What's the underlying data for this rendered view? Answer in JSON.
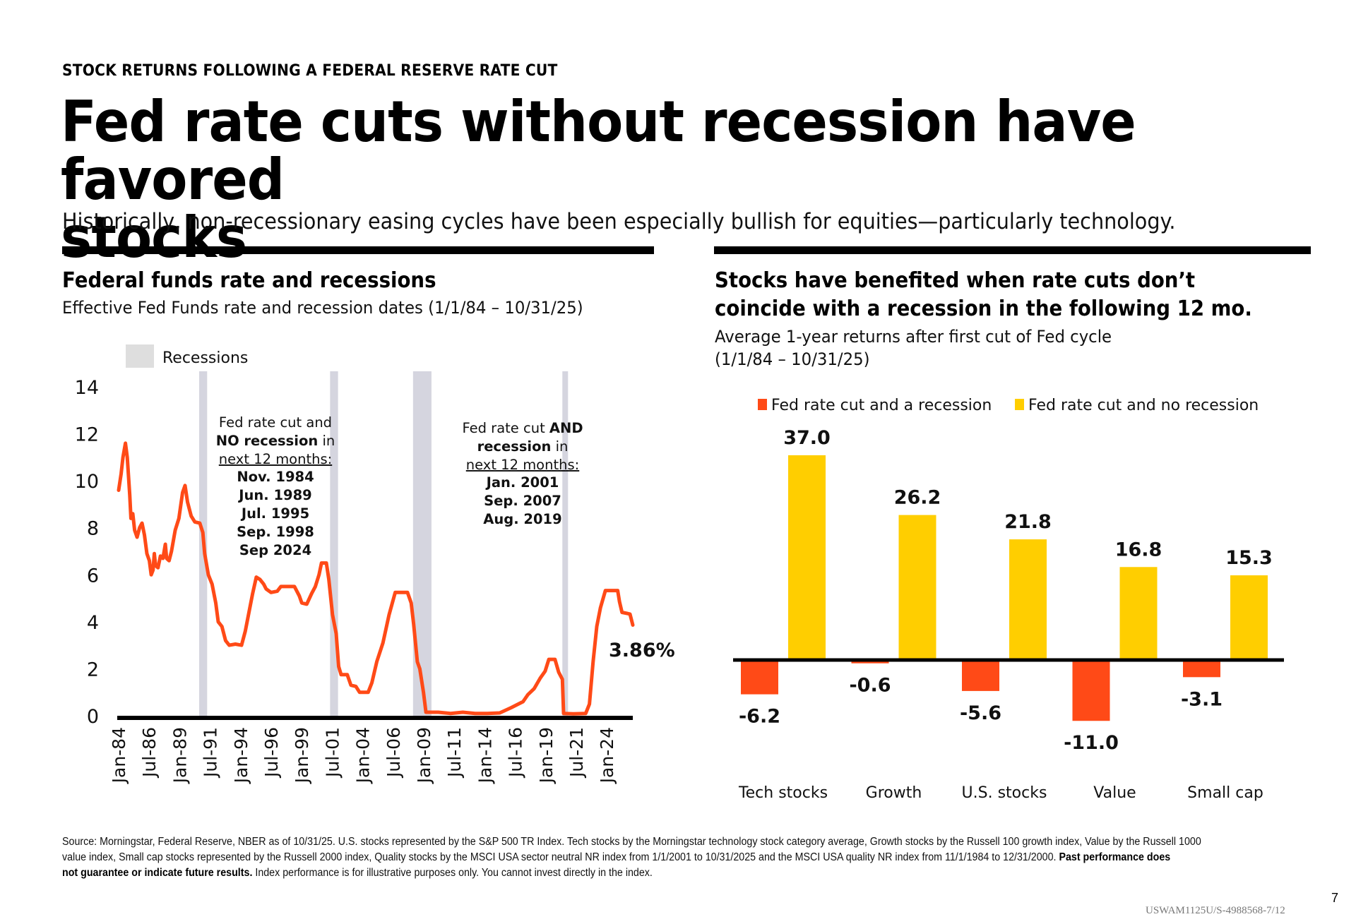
{
  "header": {
    "eyebrow": "STOCK RETURNS FOLLOWING A FEDERAL RESERVE RATE CUT",
    "title_line1": "Fed rate cuts without recession have favored",
    "title_line2": "stocks",
    "subtitle": "Historically, non-recessionary easing cycles have been especially bullish for equities—particularly technology."
  },
  "left_panel": {
    "title": "Federal funds rate and recessions",
    "subtitle": "Effective Fed Funds rate and recession dates (1/1/84 – 10/31/25)",
    "legend_label": "Recessions",
    "annotation_no_recession": {
      "line1": "Fed rate cut and",
      "line2_bold": "NO recession",
      "line2_rest": " in",
      "line3": "next 12 months:",
      "dates": [
        "Nov. 1984",
        "Jun. 1989",
        "Jul. 1995",
        "Sep. 1998",
        "Sep 2024"
      ]
    },
    "annotation_recession": {
      "line1_plain": "Fed rate cut ",
      "line1_bold": "AND",
      "line2_bold": "recession",
      "line2_rest": " in",
      "line3": "next 12 months:",
      "dates": [
        "Jan. 2001",
        "Sep. 2007",
        "Aug. 2019"
      ]
    },
    "end_label": "3.86%"
  },
  "right_panel": {
    "title_line1": "Stocks have benefited when rate cuts don’t",
    "title_line2": "coincide with a recession in the following 12 mo.",
    "subtitle_line1": "Average 1-year returns after first cut of Fed cycle",
    "subtitle_line2": "(1/1/84 – 10/31/25)"
  },
  "colors": {
    "recession_series": "#FF4A17",
    "no_recession_series": "#FFCE00",
    "rate_line": "#FF4A17",
    "recession_band": "#D5D5DF",
    "legend_box": "#DEDEDE"
  },
  "chart_data": [
    {
      "type": "line",
      "title": "Federal funds rate and recessions",
      "xlabel": "",
      "ylabel": "",
      "ylim": [
        0,
        14
      ],
      "yticks": [
        "0",
        "2",
        "4",
        "6",
        "8",
        "10",
        "12",
        "14"
      ],
      "xrange": [
        1984.0,
        2025.83
      ],
      "xtick_labels": [
        "Jan-84",
        "Jul-86",
        "Jan-89",
        "Jul-91",
        "Jan-94",
        "Jul-96",
        "Jan-99",
        "Jul-01",
        "Jan-04",
        "Jul-06",
        "Jan-09",
        "Jul-11",
        "Jan-14",
        "Jul-16",
        "Jan-19",
        "Jul-21",
        "Jan-24"
      ],
      "grid": false,
      "legend": "top-left",
      "recessions": [
        {
          "start": 1990.55,
          "end": 1991.2
        },
        {
          "start": 2001.2,
          "end": 2001.85
        },
        {
          "start": 2007.95,
          "end": 2009.45
        },
        {
          "start": 2020.1,
          "end": 2020.3
        }
      ],
      "series": [
        {
          "name": "Effective Fed Funds rate",
          "points": [
            [
              1984.0,
              9.6
            ],
            [
              1984.2,
              10.3
            ],
            [
              1984.35,
              11.0
            ],
            [
              1984.55,
              11.6
            ],
            [
              1984.7,
              11.0
            ],
            [
              1984.9,
              9.4
            ],
            [
              1985.0,
              8.4
            ],
            [
              1985.15,
              8.6
            ],
            [
              1985.3,
              7.9
            ],
            [
              1985.5,
              7.6
            ],
            [
              1985.7,
              8.0
            ],
            [
              1985.9,
              8.2
            ],
            [
              1986.1,
              7.7
            ],
            [
              1986.3,
              6.9
            ],
            [
              1986.5,
              6.6
            ],
            [
              1986.65,
              6.0
            ],
            [
              1986.8,
              6.2
            ],
            [
              1986.9,
              6.9
            ],
            [
              1987.0,
              6.4
            ],
            [
              1987.2,
              6.3
            ],
            [
              1987.4,
              6.8
            ],
            [
              1987.6,
              6.7
            ],
            [
              1987.8,
              7.3
            ],
            [
              1987.9,
              6.7
            ],
            [
              1988.1,
              6.6
            ],
            [
              1988.3,
              7.0
            ],
            [
              1988.6,
              7.9
            ],
            [
              1988.9,
              8.4
            ],
            [
              1989.2,
              9.5
            ],
            [
              1989.4,
              9.8
            ],
            [
              1989.6,
              9.1
            ],
            [
              1989.9,
              8.5
            ],
            [
              1990.2,
              8.25
            ],
            [
              1990.6,
              8.2
            ],
            [
              1990.85,
              7.8
            ],
            [
              1991.0,
              6.9
            ],
            [
              1991.3,
              6.0
            ],
            [
              1991.6,
              5.6
            ],
            [
              1991.9,
              4.8
            ],
            [
              1992.1,
              4.0
            ],
            [
              1992.4,
              3.8
            ],
            [
              1992.7,
              3.2
            ],
            [
              1993.0,
              3.0
            ],
            [
              1993.5,
              3.05
            ],
            [
              1994.0,
              3.0
            ],
            [
              1994.3,
              3.6
            ],
            [
              1994.6,
              4.4
            ],
            [
              1994.9,
              5.2
            ],
            [
              1995.2,
              5.9
            ],
            [
              1995.5,
              5.8
            ],
            [
              1995.8,
              5.6
            ],
            [
              1996.0,
              5.4
            ],
            [
              1996.4,
              5.25
            ],
            [
              1996.9,
              5.3
            ],
            [
              1997.2,
              5.5
            ],
            [
              1997.8,
              5.5
            ],
            [
              1998.3,
              5.5
            ],
            [
              1998.7,
              5.1
            ],
            [
              1998.9,
              4.8
            ],
            [
              1999.3,
              4.75
            ],
            [
              1999.7,
              5.2
            ],
            [
              2000.0,
              5.5
            ],
            [
              2000.3,
              6.0
            ],
            [
              2000.5,
              6.5
            ],
            [
              2000.9,
              6.5
            ],
            [
              2001.1,
              5.8
            ],
            [
              2001.4,
              4.3
            ],
            [
              2001.7,
              3.5
            ],
            [
              2001.9,
              2.1
            ],
            [
              2002.1,
              1.75
            ],
            [
              2002.6,
              1.75
            ],
            [
              2002.9,
              1.3
            ],
            [
              2003.3,
              1.25
            ],
            [
              2003.6,
              1.0
            ],
            [
              2004.3,
              1.0
            ],
            [
              2004.6,
              1.4
            ],
            [
              2005.0,
              2.3
            ],
            [
              2005.5,
              3.1
            ],
            [
              2006.0,
              4.3
            ],
            [
              2006.5,
              5.25
            ],
            [
              2007.5,
              5.25
            ],
            [
              2007.8,
              4.8
            ],
            [
              2008.0,
              3.9
            ],
            [
              2008.3,
              2.3
            ],
            [
              2008.5,
              2.0
            ],
            [
              2008.8,
              1.0
            ],
            [
              2009.0,
              0.15
            ],
            [
              2010.0,
              0.15
            ],
            [
              2011.0,
              0.1
            ],
            [
              2012.0,
              0.15
            ],
            [
              2013.0,
              0.1
            ],
            [
              2014.0,
              0.1
            ],
            [
              2015.0,
              0.12
            ],
            [
              2015.95,
              0.35
            ],
            [
              2016.9,
              0.6
            ],
            [
              2017.3,
              0.9
            ],
            [
              2017.8,
              1.15
            ],
            [
              2018.3,
              1.6
            ],
            [
              2018.7,
              1.9
            ],
            [
              2019.0,
              2.4
            ],
            [
              2019.5,
              2.4
            ],
            [
              2019.8,
              1.85
            ],
            [
              2020.1,
              1.55
            ],
            [
              2020.2,
              0.1
            ],
            [
              2021.0,
              0.08
            ],
            [
              2022.0,
              0.1
            ],
            [
              2022.3,
              0.5
            ],
            [
              2022.6,
              2.3
            ],
            [
              2022.9,
              3.8
            ],
            [
              2023.2,
              4.6
            ],
            [
              2023.6,
              5.33
            ],
            [
              2024.6,
              5.33
            ],
            [
              2024.75,
              4.85
            ],
            [
              2024.95,
              4.4
            ],
            [
              2025.6,
              4.33
            ],
            [
              2025.83,
              3.86
            ]
          ]
        }
      ]
    },
    {
      "type": "bar",
      "title": "Stocks have benefited when rate cuts don’t coincide with a recession in the following 12 mo.",
      "subtitle": "Average 1-year returns after first cut of Fed cycle (1/1/84 – 10/31/25)",
      "xlabel": "",
      "ylabel": "",
      "ylim": [
        -11,
        37
      ],
      "grid": false,
      "legend": "top",
      "categories": [
        "Tech stocks",
        "Growth",
        "U.S. stocks",
        "Value",
        "Small cap"
      ],
      "series": [
        {
          "name": "Fed rate cut and a recession",
          "values": [
            -6.2,
            -0.6,
            -5.6,
            -11.0,
            -3.1
          ],
          "labels": [
            "-6.2",
            "-0.6",
            "-5.6",
            "-11.0",
            "-3.1"
          ]
        },
        {
          "name": "Fed rate cut and no recession",
          "values": [
            37.0,
            26.2,
            21.8,
            16.8,
            15.3
          ],
          "labels": [
            "37.0",
            "26.2",
            "21.8",
            "16.8",
            "15.3"
          ]
        }
      ]
    }
  ],
  "footer": {
    "source_line1": "Source: Morningstar, Federal Reserve, NBER as of 10/31/25. U.S. stocks represented by the S&P 500 TR Index. Tech stocks by the Morningstar technology stock category average, Growth stocks by the Russell 100 growth index, Value by the Russell 1000",
    "source_line2": "value index, Small cap stocks represented by the Russell 2000 index, Quality stocks by the MSCI USA sector neutral NR index from 1/1/2001 to 10/31/2025 and the MSCI USA quality NR index from 11/1/1984 to 12/31/2000. ",
    "disclaimer_bold_a": "Past performance does",
    "disclaimer_bold_b": "not guarantee or indicate future results.",
    "disclaimer_rest": " Index performance is for illustrative purposes only. You cannot invest directly in the index.",
    "page_number": "7",
    "doc_id": "USWAM1125U/S-4988568-7/12"
  }
}
